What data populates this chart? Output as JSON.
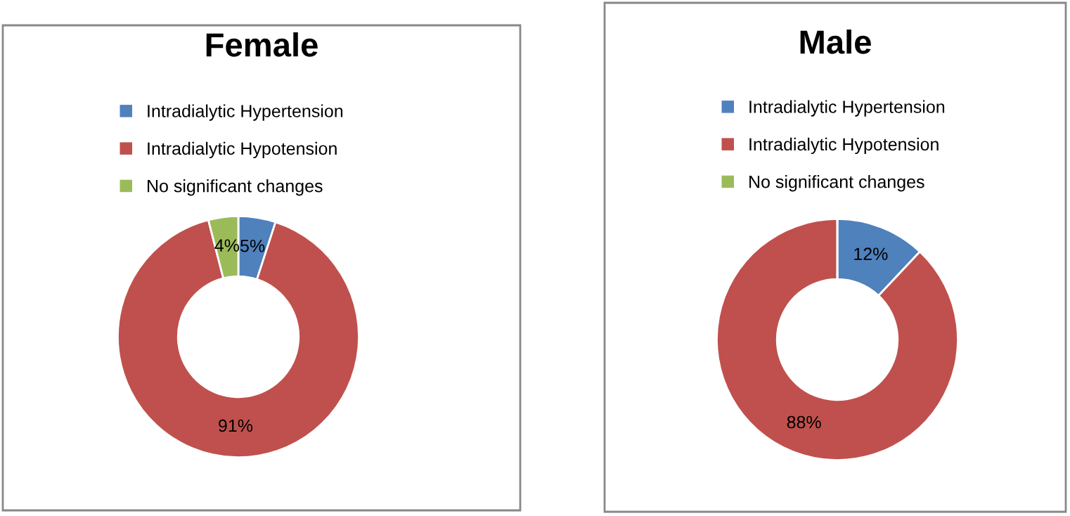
{
  "chart_data": [
    {
      "type": "donut",
      "title": "Female",
      "categories": [
        "Intradialytic Hypertension",
        "Intradialytic Hypotension",
        "No significant changes"
      ],
      "values": [
        5,
        91,
        4
      ],
      "value_labels": [
        "5%",
        "91%",
        "4%"
      ],
      "colors": [
        "#4f81bd",
        "#c0504d",
        "#9bbb59"
      ],
      "legend": "top"
    },
    {
      "type": "donut",
      "title": "Male",
      "categories": [
        "Intradialytic Hypertension",
        "Intradialytic Hypotension",
        "No significant changes"
      ],
      "values": [
        12,
        88,
        0
      ],
      "value_labels": [
        "12%",
        "88%",
        null
      ],
      "colors": [
        "#4f81bd",
        "#c0504d",
        "#9bbb59"
      ],
      "legend": "top"
    }
  ]
}
